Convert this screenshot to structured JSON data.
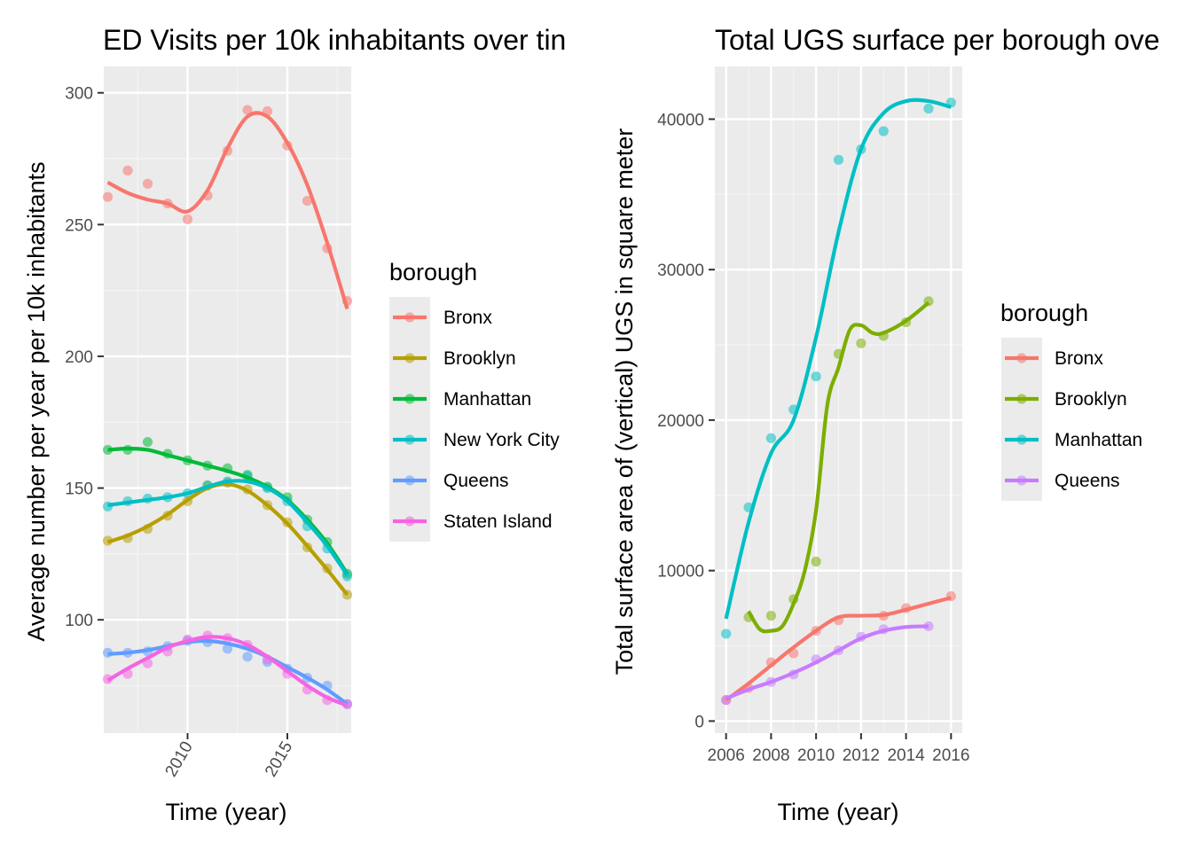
{
  "charts": [
    {
      "title": "ED Visits per 10k inhabitants over tin",
      "xlabel": "Time (year)",
      "ylabel": "Average number per year per 10k inhabitants",
      "legend_title": "borough"
    },
    {
      "title": "Total UGS surface per borough ove",
      "xlabel": "Time (year)",
      "ylabel": "Total surface area of (vertical) UGS in square meter",
      "legend_title": "borough"
    }
  ],
  "chart_data": [
    {
      "type": "scatter",
      "title": "ED Visits per 10k inhabitants over tin",
      "xlabel": "Time (year)",
      "ylabel": "Average number per year per 10k inhabitants",
      "xlim": [
        2005.8,
        2018.2
      ],
      "ylim": [
        57,
        310
      ],
      "x_ticks": [
        2010,
        2015
      ],
      "x_tick_labels": [
        "2010",
        "2015"
      ],
      "x_tick_rotation": -60,
      "y_ticks": [
        100,
        150,
        200,
        250,
        300
      ],
      "y_tick_labels": [
        "100",
        "150",
        "200",
        "250",
        "300"
      ],
      "grid": true,
      "legend_title": "borough",
      "legend_position": "right",
      "series": [
        {
          "name": "Bronx",
          "color": "#F8766D",
          "points": [
            [
              2006,
              260.5
            ],
            [
              2007,
              270.5
            ],
            [
              2008,
              265.5
            ],
            [
              2009,
              258
            ],
            [
              2010,
              252
            ],
            [
              2011,
              261
            ],
            [
              2012,
              278
            ],
            [
              2013,
              293.5
            ],
            [
              2014,
              293
            ],
            [
              2015,
              280
            ],
            [
              2016,
              259
            ],
            [
              2017,
              241
            ],
            [
              2018,
              221
            ]
          ],
          "smooth": [
            [
              2006,
              266
            ],
            [
              2007,
              262
            ],
            [
              2008,
              259.5
            ],
            [
              2009,
              258
            ],
            [
              2010,
              255
            ],
            [
              2011,
              263
            ],
            [
              2012,
              279
            ],
            [
              2013,
              291
            ],
            [
              2014,
              291
            ],
            [
              2015,
              281
            ],
            [
              2016,
              265
            ],
            [
              2017,
              243
            ],
            [
              2018,
              218
            ]
          ]
        },
        {
          "name": "Brooklyn",
          "color": "#B79F00",
          "points": [
            [
              2006,
              130
            ],
            [
              2007,
              131
            ],
            [
              2008,
              134.5
            ],
            [
              2009,
              139.5
            ],
            [
              2010,
              145
            ],
            [
              2011,
              151
            ],
            [
              2012,
              152
            ],
            [
              2013,
              149.5
            ],
            [
              2014,
              143.5
            ],
            [
              2015,
              137
            ],
            [
              2016,
              127.5
            ],
            [
              2017,
              119.5
            ],
            [
              2018,
              109.5
            ]
          ],
          "smooth": [
            [
              2006,
              129.5
            ],
            [
              2007,
              132
            ],
            [
              2008,
              135.5
            ],
            [
              2009,
              140
            ],
            [
              2010,
              145.5
            ],
            [
              2011,
              150
            ],
            [
              2012,
              151.5
            ],
            [
              2013,
              149
            ],
            [
              2014,
              143.5
            ],
            [
              2015,
              136.5
            ],
            [
              2016,
              128
            ],
            [
              2017,
              119
            ],
            [
              2018,
              109.5
            ]
          ]
        },
        {
          "name": "Manhattan",
          "color": "#00BA38",
          "points": [
            [
              2006,
              164.5
            ],
            [
              2007,
              164.5
            ],
            [
              2008,
              167.5
            ],
            [
              2009,
              163
            ],
            [
              2010,
              160.5
            ],
            [
              2011,
              158.5
            ],
            [
              2012,
              157.5
            ],
            [
              2013,
              155
            ],
            [
              2014,
              150.5
            ],
            [
              2015,
              146.5
            ],
            [
              2016,
              138
            ],
            [
              2017,
              129.5
            ],
            [
              2018,
              117.5
            ]
          ],
          "smooth": [
            [
              2006,
              164.5
            ],
            [
              2007,
              165
            ],
            [
              2008,
              164.5
            ],
            [
              2009,
              162.5
            ],
            [
              2010,
              160.5
            ],
            [
              2011,
              158.5
            ],
            [
              2012,
              156.5
            ],
            [
              2013,
              154
            ],
            [
              2014,
              150.5
            ],
            [
              2015,
              145.5
            ],
            [
              2016,
              138
            ],
            [
              2017,
              129
            ],
            [
              2018,
              117.5
            ]
          ]
        },
        {
          "name": "New York City",
          "color": "#00BFC4",
          "points": [
            [
              2006,
              143
            ],
            [
              2007,
              145
            ],
            [
              2008,
              146
            ],
            [
              2009,
              146.5
            ],
            [
              2010,
              148
            ],
            [
              2011,
              151
            ],
            [
              2012,
              152.5
            ],
            [
              2013,
              154.5
            ],
            [
              2014,
              150
            ],
            [
              2015,
              145
            ],
            [
              2016,
              135.5
            ],
            [
              2017,
              127
            ],
            [
              2018,
              116.5
            ]
          ],
          "smooth": [
            [
              2006,
              143.5
            ],
            [
              2007,
              144.5
            ],
            [
              2008,
              145.5
            ],
            [
              2009,
              146.5
            ],
            [
              2010,
              148
            ],
            [
              2011,
              150.5
            ],
            [
              2012,
              152.5
            ],
            [
              2013,
              152.5
            ],
            [
              2014,
              150
            ],
            [
              2015,
              145
            ],
            [
              2016,
              137
            ],
            [
              2017,
              128
            ],
            [
              2018,
              117
            ]
          ]
        },
        {
          "name": "Queens",
          "color": "#619CFF",
          "points": [
            [
              2006,
              87.5
            ],
            [
              2007,
              87.5
            ],
            [
              2008,
              88
            ],
            [
              2009,
              90
            ],
            [
              2010,
              92
            ],
            [
              2011,
              91.5
            ],
            [
              2012,
              89
            ],
            [
              2013,
              86
            ],
            [
              2014,
              84
            ],
            [
              2015,
              81.5
            ],
            [
              2016,
              78
            ],
            [
              2017,
              75
            ],
            [
              2018,
              68
            ]
          ],
          "smooth": [
            [
              2006,
              87
            ],
            [
              2007,
              87.5
            ],
            [
              2008,
              88.5
            ],
            [
              2009,
              90
            ],
            [
              2010,
              91.5
            ],
            [
              2011,
              92
            ],
            [
              2012,
              91
            ],
            [
              2013,
              89
            ],
            [
              2014,
              86
            ],
            [
              2015,
              82
            ],
            [
              2016,
              78
            ],
            [
              2017,
              73.5
            ],
            [
              2018,
              68
            ]
          ]
        },
        {
          "name": "Staten Island",
          "color": "#F564E3",
          "points": [
            [
              2006,
              77.5
            ],
            [
              2007,
              79.5
            ],
            [
              2008,
              83.5
            ],
            [
              2009,
              88
            ],
            [
              2010,
              92.5
            ],
            [
              2011,
              94
            ],
            [
              2012,
              93
            ],
            [
              2013,
              90.5
            ],
            [
              2014,
              85
            ],
            [
              2015,
              79.5
            ],
            [
              2016,
              73.5
            ],
            [
              2017,
              69.5
            ],
            [
              2018,
              68
            ]
          ],
          "smooth": [
            [
              2006,
              77
            ],
            [
              2007,
              81.5
            ],
            [
              2008,
              85.5
            ],
            [
              2009,
              89.5
            ],
            [
              2010,
              92
            ],
            [
              2011,
              93.5
            ],
            [
              2012,
              93
            ],
            [
              2013,
              90.5
            ],
            [
              2014,
              86
            ],
            [
              2015,
              80.5
            ],
            [
              2016,
              75
            ],
            [
              2017,
              70.5
            ],
            [
              2018,
              67.5
            ]
          ]
        }
      ]
    },
    {
      "type": "scatter",
      "title": "Total UGS surface per borough ove",
      "xlabel": "Time (year)",
      "ylabel": "Total surface area of (vertical) UGS in square meter",
      "xlim": [
        2005.5,
        2016.5
      ],
      "ylim": [
        -800,
        43500
      ],
      "x_ticks": [
        2006,
        2008,
        2010,
        2012,
        2014,
        2016
      ],
      "x_tick_labels": [
        "2006",
        "2008",
        "2010",
        "2012",
        "2014",
        "2016"
      ],
      "x_tick_rotation": 0,
      "y_ticks": [
        0,
        10000,
        20000,
        30000,
        40000
      ],
      "y_tick_labels": [
        "0",
        "10000",
        "20000",
        "30000",
        "40000"
      ],
      "grid": true,
      "legend_title": "borough",
      "legend_position": "right",
      "series": [
        {
          "name": "Bronx",
          "color": "#F8766D",
          "points": [
            [
              2006,
              1400
            ],
            [
              2007,
              2200
            ],
            [
              2008,
              3900
            ],
            [
              2009,
              4500
            ],
            [
              2010,
              6000
            ],
            [
              2011,
              6700
            ],
            [
              2013,
              7000
            ],
            [
              2014,
              7500
            ],
            [
              2016,
              8300
            ]
          ],
          "smooth": [
            [
              2006,
              1400
            ],
            [
              2007,
              2500
            ],
            [
              2008,
              3700
            ],
            [
              2009,
              4900
            ],
            [
              2010,
              6000
            ],
            [
              2011,
              6900
            ],
            [
              2012,
              7000
            ],
            [
              2013,
              7050
            ],
            [
              2014,
              7400
            ],
            [
              2015,
              7800
            ],
            [
              2016,
              8200
            ]
          ]
        },
        {
          "name": "Brooklyn",
          "color": "#7CAE00",
          "points": [
            [
              2007,
              6900
            ],
            [
              2008,
              7000
            ],
            [
              2009,
              8100
            ],
            [
              2010,
              10600
            ],
            [
              2011,
              24400
            ],
            [
              2012,
              25100
            ],
            [
              2013,
              25600
            ],
            [
              2014,
              26500
            ],
            [
              2015,
              27900
            ]
          ],
          "smooth": [
            [
              2007,
              7300
            ],
            [
              2007.5,
              6100
            ],
            [
              2008,
              6000
            ],
            [
              2008.5,
              6300
            ],
            [
              2009,
              7800
            ],
            [
              2009.5,
              10000
            ],
            [
              2010,
              14000
            ],
            [
              2010.5,
              21000
            ],
            [
              2011,
              23500
            ],
            [
              2011.5,
              26000
            ],
            [
              2012,
              26300
            ],
            [
              2012.5,
              25800
            ],
            [
              2013,
              25800
            ],
            [
              2014,
              26600
            ],
            [
              2015,
              27800
            ]
          ]
        },
        {
          "name": "Manhattan",
          "color": "#00BFC4",
          "points": [
            [
              2006,
              5800
            ],
            [
              2007,
              14200
            ],
            [
              2008,
              18800
            ],
            [
              2009,
              20700
            ],
            [
              2010,
              22900
            ],
            [
              2011,
              37300
            ],
            [
              2012,
              38000
            ],
            [
              2013,
              39200
            ],
            [
              2015,
              40700
            ],
            [
              2016,
              41100
            ]
          ],
          "smooth": [
            [
              2006,
              6800
            ],
            [
              2007,
              13200
            ],
            [
              2008,
              17800
            ],
            [
              2009,
              20000
            ],
            [
              2010,
              25500
            ],
            [
              2011,
              32500
            ],
            [
              2012,
              38000
            ],
            [
              2013,
              40400
            ],
            [
              2014,
              41200
            ],
            [
              2015,
              41200
            ],
            [
              2016,
              40800
            ]
          ]
        },
        {
          "name": "Queens",
          "color": "#C77CFF",
          "points": [
            [
              2006,
              1400
            ],
            [
              2008,
              2600
            ],
            [
              2009,
              3100
            ],
            [
              2010,
              4100
            ],
            [
              2011,
              4700
            ],
            [
              2012,
              5600
            ],
            [
              2013,
              6100
            ],
            [
              2015,
              6300
            ]
          ],
          "smooth": [
            [
              2006,
              1500
            ],
            [
              2007,
              2100
            ],
            [
              2008,
              2600
            ],
            [
              2009,
              3200
            ],
            [
              2010,
              3900
            ],
            [
              2011,
              4700
            ],
            [
              2012,
              5500
            ],
            [
              2013,
              6000
            ],
            [
              2014,
              6250
            ],
            [
              2015,
              6300
            ]
          ]
        }
      ]
    }
  ]
}
